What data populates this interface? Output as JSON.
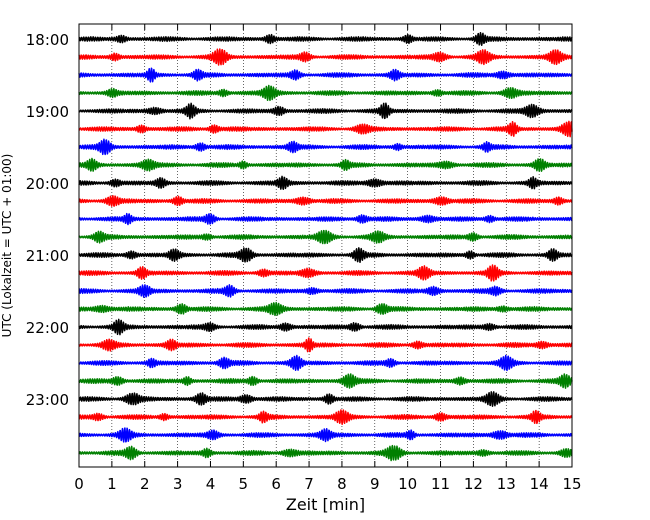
{
  "chart_data": {
    "type": "line",
    "xlabel": "Zeit  [min]",
    "ylabel": "UTC (Lokalzeit = UTC + 01:00)",
    "xlim": [
      0,
      15
    ],
    "xticks": [
      "0",
      "1",
      "2",
      "3",
      "4",
      "5",
      "6",
      "7",
      "8",
      "9",
      "10",
      "11",
      "12",
      "13",
      "14",
      "15"
    ],
    "yticks": [
      "18:00",
      "19:00",
      "20:00",
      "21:00",
      "22:00",
      "23:00"
    ],
    "grid": {
      "x": true,
      "style": "dotted"
    },
    "trace_interval_min": 15,
    "trace_count": 24,
    "color_cycle": [
      "#000000",
      "#ff0000",
      "#0000ff",
      "#008000"
    ],
    "traces": [
      {
        "start": "18:00",
        "events": [
          1.3,
          5.8,
          10.0,
          12.2
        ]
      },
      {
        "start": "18:15",
        "events": [
          1.1,
          4.3,
          6.9,
          11.0,
          12.3,
          14.5
        ]
      },
      {
        "start": "18:30",
        "events": [
          2.2,
          3.6,
          6.6,
          9.6,
          12.9
        ]
      },
      {
        "start": "18:45",
        "events": [
          1.0,
          4.4,
          5.8,
          10.9,
          13.1
        ]
      },
      {
        "start": "19:00",
        "events": [
          2.3,
          3.4,
          6.1,
          9.3,
          13.8
        ]
      },
      {
        "start": "19:15",
        "events": [
          1.9,
          4.1,
          8.6,
          13.2,
          14.9
        ]
      },
      {
        "start": "19:30",
        "events": [
          0.8,
          3.7,
          6.5,
          9.7,
          12.4
        ]
      },
      {
        "start": "19:45",
        "events": [
          0.4,
          2.1,
          5.0,
          8.1,
          11.2,
          14.0
        ]
      },
      {
        "start": "20:00",
        "events": [
          1.1,
          2.5,
          6.2,
          9.0,
          13.8
        ]
      },
      {
        "start": "20:15",
        "events": [
          1.0,
          3.0,
          6.8,
          11.0,
          14.6
        ]
      },
      {
        "start": "20:30",
        "events": [
          1.5,
          4.0,
          8.6,
          10.6,
          12.5
        ]
      },
      {
        "start": "20:45",
        "events": [
          0.6,
          3.9,
          7.5,
          9.1,
          12.0
        ]
      },
      {
        "start": "21:00",
        "events": [
          1.6,
          2.9,
          5.1,
          8.5,
          11.9,
          14.4
        ]
      },
      {
        "start": "21:15",
        "events": [
          1.9,
          5.6,
          7.0,
          10.5,
          12.6
        ]
      },
      {
        "start": "21:30",
        "events": [
          2.0,
          4.6,
          7.1,
          10.8,
          12.7
        ]
      },
      {
        "start": "21:45",
        "events": [
          0.7,
          3.1,
          6.0,
          9.2,
          12.9
        ]
      },
      {
        "start": "22:00",
        "events": [
          1.2,
          4.0,
          6.3,
          8.4,
          12.5
        ]
      },
      {
        "start": "22:15",
        "events": [
          0.9,
          2.8,
          7.0,
          10.3,
          14.1
        ]
      },
      {
        "start": "22:30",
        "events": [
          2.2,
          4.4,
          6.6,
          9.5,
          13.0
        ]
      },
      {
        "start": "22:45",
        "events": [
          1.2,
          3.3,
          5.3,
          8.2,
          11.6,
          14.8
        ]
      },
      {
        "start": "23:00",
        "events": [
          1.6,
          3.7,
          5.1,
          7.6,
          12.6
        ]
      },
      {
        "start": "23:15",
        "events": [
          0.6,
          2.6,
          5.6,
          8.0,
          11.0,
          13.9
        ]
      },
      {
        "start": "23:30",
        "events": [
          1.4,
          4.1,
          7.5,
          10.1,
          12.8
        ]
      },
      {
        "start": "23:45",
        "events": [
          1.6,
          3.9,
          6.4,
          9.6,
          12.3,
          14.8
        ]
      }
    ]
  }
}
